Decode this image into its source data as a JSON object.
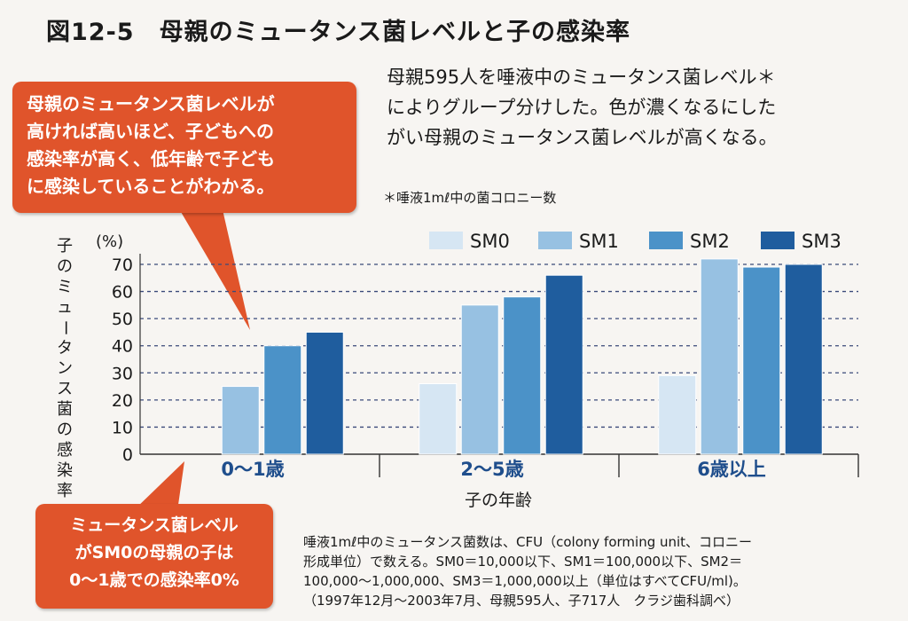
{
  "title": "図12-5　母親のミュータンス菌レベルと子の感染率",
  "description": [
    "母親595人を唾液中のミュータンス菌レベル＊",
    "によりグループ分けした。色が濃くなるにした",
    "がい母親のミュータンス菌レベルが高くなる。"
  ],
  "footnote": "＊唾液1mℓ中の菌コロニー数",
  "callout_top": [
    "母親のミュータンス菌レベルが",
    "高ければ高いほど、子どもへの",
    "感染率が高く、低年齢で子ども",
    "に感染していることがわかる。"
  ],
  "callout_bottom": [
    "ミュータンス菌レベル",
    "がSM0の母親の子は",
    "0〜1歳での感染率0%"
  ],
  "note": [
    "唾液1mℓ中のミュータンス菌数は、CFU（colony forming unit、コロニー",
    "形成単位）で数える。SM0＝10,000以下、SM1＝100,000以下、SM2＝",
    "100,000〜1,000,000、SM3＝1,000,000以上（単位はすべてCFU/ml)。",
    "（1997年12月〜2003年7月、母親595人、子717人　クラジ歯科調べ）"
  ],
  "chart_data": {
    "type": "bar",
    "xlabel": "子の年齢",
    "ylabel": "子のミュータンス菌の感染率",
    "yunit": "(%)",
    "ylim": [
      0,
      70
    ],
    "yticks": [
      0,
      10,
      20,
      30,
      40,
      50,
      60,
      70
    ],
    "grid": true,
    "legend_position": "top-right",
    "categories": [
      "0〜1歳",
      "2〜5歳",
      "6歳以上"
    ],
    "series": [
      {
        "name": "SM0",
        "color": "#d6e6f3",
        "values": [
          0,
          26,
          29
        ]
      },
      {
        "name": "SM1",
        "color": "#97c1e2",
        "values": [
          25,
          55,
          72
        ]
      },
      {
        "name": "SM2",
        "color": "#4b92c8",
        "values": [
          40,
          58,
          69
        ]
      },
      {
        "name": "SM3",
        "color": "#1f5d9e",
        "values": [
          45,
          66,
          70
        ]
      }
    ]
  }
}
